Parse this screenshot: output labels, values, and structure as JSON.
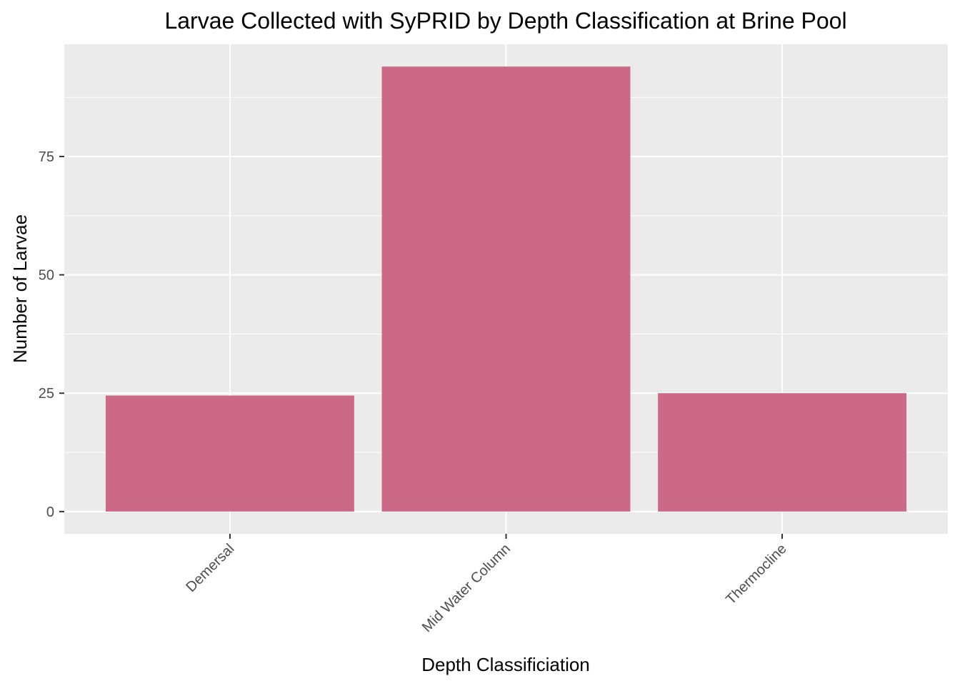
{
  "chart_data": {
    "type": "bar",
    "title": "Larvae Collected with SyPRID by Depth Classification at Brine Pool",
    "xlabel": "Depth Classificiation",
    "ylabel": "Number of Larvae",
    "categories": [
      "Demersal",
      "Mid Water Column",
      "Thermocline"
    ],
    "values": [
      24.5,
      94,
      25
    ],
    "ylim": [
      -4.7,
      98.7
    ],
    "yticks": [
      0,
      25,
      50,
      75
    ],
    "ytick_labels": [
      "0",
      "25",
      "50",
      "75"
    ],
    "grid": true,
    "legend": "none",
    "colors": {
      "bar": "#CC6986",
      "panel": "#EBEBEB",
      "grid": "#FFFFFF",
      "tick": "#333333"
    }
  }
}
